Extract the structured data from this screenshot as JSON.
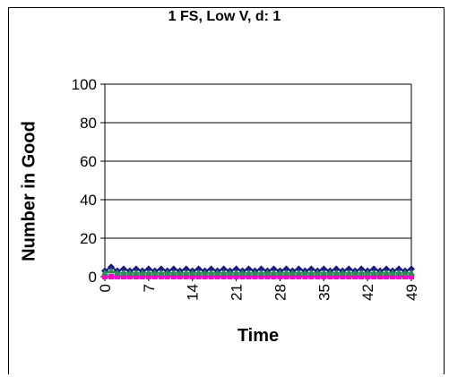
{
  "chart_data": {
    "type": "line",
    "title": "1 FS, Low  V, d: 1",
    "xlabel": "Time",
    "ylabel": "Number in Good",
    "ylim": [
      0,
      100
    ],
    "yticks": [
      "0",
      "20",
      "40",
      "60",
      "80",
      "100"
    ],
    "xticks": [
      "0",
      "7",
      "14",
      "21",
      "28",
      "35",
      "42",
      "49"
    ],
    "xlim": [
      0,
      49
    ],
    "grid": true,
    "series": [
      {
        "color": "#1a1a80",
        "marker": "diamond",
        "values": [
          3,
          5,
          3,
          4,
          3,
          4,
          3,
          4,
          3,
          4,
          3,
          4,
          3,
          4,
          3,
          4,
          3,
          4,
          3,
          4,
          3,
          4,
          3,
          4,
          3,
          4,
          3,
          4,
          3,
          4,
          3,
          4,
          3,
          4,
          3,
          4,
          3,
          4,
          3,
          4,
          3,
          4,
          3,
          4,
          3,
          4,
          3,
          4,
          3,
          4
        ]
      },
      {
        "color": "#ff00cc",
        "marker": "square",
        "values": [
          0,
          0,
          0,
          0,
          0,
          0,
          0,
          0,
          0,
          0,
          0,
          0,
          0,
          0,
          0,
          0,
          0,
          0,
          0,
          0,
          0,
          0,
          0,
          0,
          0,
          0,
          0,
          0,
          0,
          0,
          0,
          0,
          0,
          0,
          0,
          0,
          0,
          0,
          0,
          0,
          0,
          0,
          0,
          0,
          0,
          0,
          0,
          0,
          0,
          0
        ]
      },
      {
        "color": "#2e8b57",
        "marker": "triangle",
        "values": [
          2,
          3,
          2,
          2,
          2,
          2,
          2,
          2,
          2,
          2,
          2,
          2,
          2,
          2,
          2,
          2,
          2,
          2,
          2,
          2,
          2,
          2,
          2,
          2,
          2,
          2,
          2,
          2,
          2,
          2,
          2,
          2,
          2,
          2,
          2,
          2,
          2,
          2,
          2,
          2,
          2,
          2,
          2,
          2,
          2,
          2,
          2,
          2,
          2,
          2
        ]
      }
    ]
  }
}
